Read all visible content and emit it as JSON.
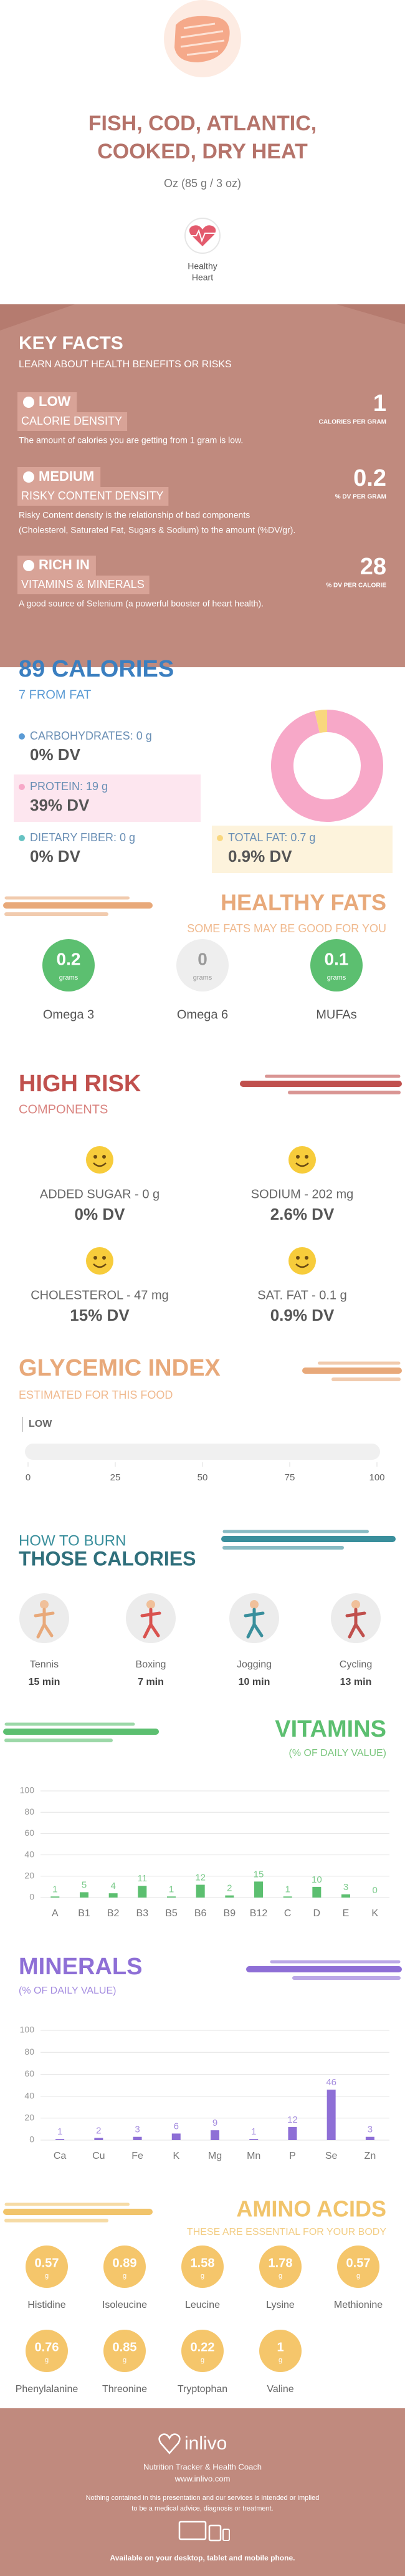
{
  "header": {
    "title": [
      "FISH, COD, ATLANTIC,",
      "COOKED, DRY HEAT"
    ],
    "serving": "Oz (85 g / 3 oz)",
    "badge": [
      "Healthy",
      "Heart"
    ]
  },
  "key_facts": {
    "title": "KEY FACTS",
    "subtitle": "LEARN ABOUT HEALTH BENEFITS OR RISKS",
    "items": [
      {
        "level": "LOW",
        "label": "CALORIE DENSITY",
        "value": 1,
        "unit": "CALORIES PER GRAM",
        "desc": [
          "The amount of calories you are getting from 1 gram is low."
        ]
      },
      {
        "level": "MEDIUM",
        "label": "RISKY CONTENT DENSITY",
        "value": 0.2,
        "unit": "% DV PER GRAM",
        "desc": [
          "Risky Content density is the relationship of bad components",
          "(Cholesterol, Saturated Fat, Sugars & Sodium) to the amount (%DV/gr)."
        ]
      },
      {
        "level": "RICH IN",
        "label": "VITAMINS & MINERALS",
        "value": 28,
        "unit": "% DV PER CALORIE",
        "desc": [
          "A good source of Selenium (a powerful booster of heart health)."
        ]
      }
    ]
  },
  "calories": {
    "title": "89 CALORIES",
    "subtitle": "7 FROM FAT",
    "nutrients": [
      {
        "label": "CARBOHYDRATES: 0 g",
        "grams": 0,
        "dv": "0% DV",
        "color": "#5b9bd5"
      },
      {
        "label": "PROTEIN: 19 g",
        "grams": 19,
        "dv": "39% DV",
        "color": "#f7a8c8"
      },
      {
        "label": "DIETARY FIBER: 0 g",
        "grams": 0,
        "dv": "0% DV",
        "color": "#66c2c2"
      },
      {
        "label": "TOTAL FAT: 0.7 g",
        "grams": 0.7,
        "dv": "0.9% DV",
        "color": "#f9d77e"
      }
    ]
  },
  "healthy_fats": {
    "title": "HEALTHY FATS",
    "subtitle": "SOME FATS MAY BE GOOD FOR YOU",
    "unit": "grams",
    "items": [
      {
        "name": "Omega 3",
        "value": 0.2,
        "color": "#5cbf70"
      },
      {
        "name": "Omega 6",
        "value": 0,
        "color": "#eeeeee"
      },
      {
        "name": "MUFAs",
        "value": 0.1,
        "color": "#5cbf70"
      }
    ]
  },
  "high_risk": {
    "title": "HIGH RISK",
    "subtitle": "COMPONENTS",
    "items": [
      {
        "label": "ADDED SUGAR - 0 g",
        "dv": "0% DV"
      },
      {
        "label": "SODIUM - 202 mg",
        "dv": "2.6% DV"
      },
      {
        "label": "CHOLESTEROL - 47 mg",
        "dv": "15% DV"
      },
      {
        "label": "SAT. FAT - 0.1 g",
        "dv": "0.9% DV"
      }
    ]
  },
  "glycemic": {
    "title": "GLYCEMIC INDEX",
    "subtitle": "ESTIMATED FOR THIS FOOD",
    "level": "LOW",
    "xlim": [
      0,
      100
    ],
    "xticks": [
      0,
      25,
      50,
      75,
      100
    ]
  },
  "burn": {
    "title": "HOW TO BURN",
    "subtitle": "THOSE CALORIES",
    "items": [
      {
        "name": "Tennis",
        "time": "15 min"
      },
      {
        "name": "Boxing",
        "time": "7 min"
      },
      {
        "name": "Jogging",
        "time": "10 min"
      },
      {
        "name": "Cycling",
        "time": "13 min"
      }
    ]
  },
  "chart_data": [
    {
      "type": "bar",
      "title": "VITAMINS",
      "subtitle": "(% OF DAILY VALUE)",
      "color": "#5cbf70",
      "categories": [
        "A",
        "B1",
        "B2",
        "B3",
        "B5",
        "B6",
        "B9",
        "B12",
        "C",
        "D",
        "E",
        "K"
      ],
      "values": [
        1,
        5,
        4,
        11,
        1,
        12,
        2,
        15,
        1,
        10,
        3,
        0
      ],
      "ylim": [
        0,
        100
      ],
      "yticks": [
        0,
        20,
        40,
        60,
        80,
        100
      ],
      "grid": true
    },
    {
      "type": "bar",
      "title": "MINERALS",
      "subtitle": "(% OF DAILY VALUE)",
      "color": "#8e6fd6",
      "categories": [
        "Ca",
        "Cu",
        "Fe",
        "K",
        "Mg",
        "Mn",
        "P",
        "Se",
        "Zn"
      ],
      "values": [
        1,
        2,
        3,
        6,
        9,
        1,
        12,
        46,
        3
      ],
      "ylim": [
        0,
        100
      ],
      "yticks": [
        0,
        20,
        40,
        60,
        80,
        100
      ],
      "grid": true
    }
  ],
  "amino_acids": {
    "title": "AMINO ACIDS",
    "subtitle": "THESE ARE ESSENTIAL FOR YOUR BODY",
    "unit": "g",
    "items": [
      {
        "name": "Histidine",
        "value": 0.57
      },
      {
        "name": "Isoleucine",
        "value": 0.89
      },
      {
        "name": "Leucine",
        "value": 1.58
      },
      {
        "name": "Lysine",
        "value": 1.78
      },
      {
        "name": "Methionine",
        "value": 0.57
      },
      {
        "name": "Phenylalanine",
        "value": 0.76
      },
      {
        "name": "Threonine",
        "value": 0.85
      },
      {
        "name": "Tryptophan",
        "value": 0.22
      },
      {
        "name": "Valine",
        "value": 1
      }
    ]
  },
  "footer": {
    "brand": "inlivo",
    "tagline": "Nutrition Tracker & Health Coach",
    "url": "www.inlivo.com",
    "disclaimer": [
      "Nothing contained in this presentation and our services is intended or implied",
      "to be a medical advice, diagnosis or treatment."
    ],
    "availability": "Available on your desktop, tablet and mobile phone."
  }
}
